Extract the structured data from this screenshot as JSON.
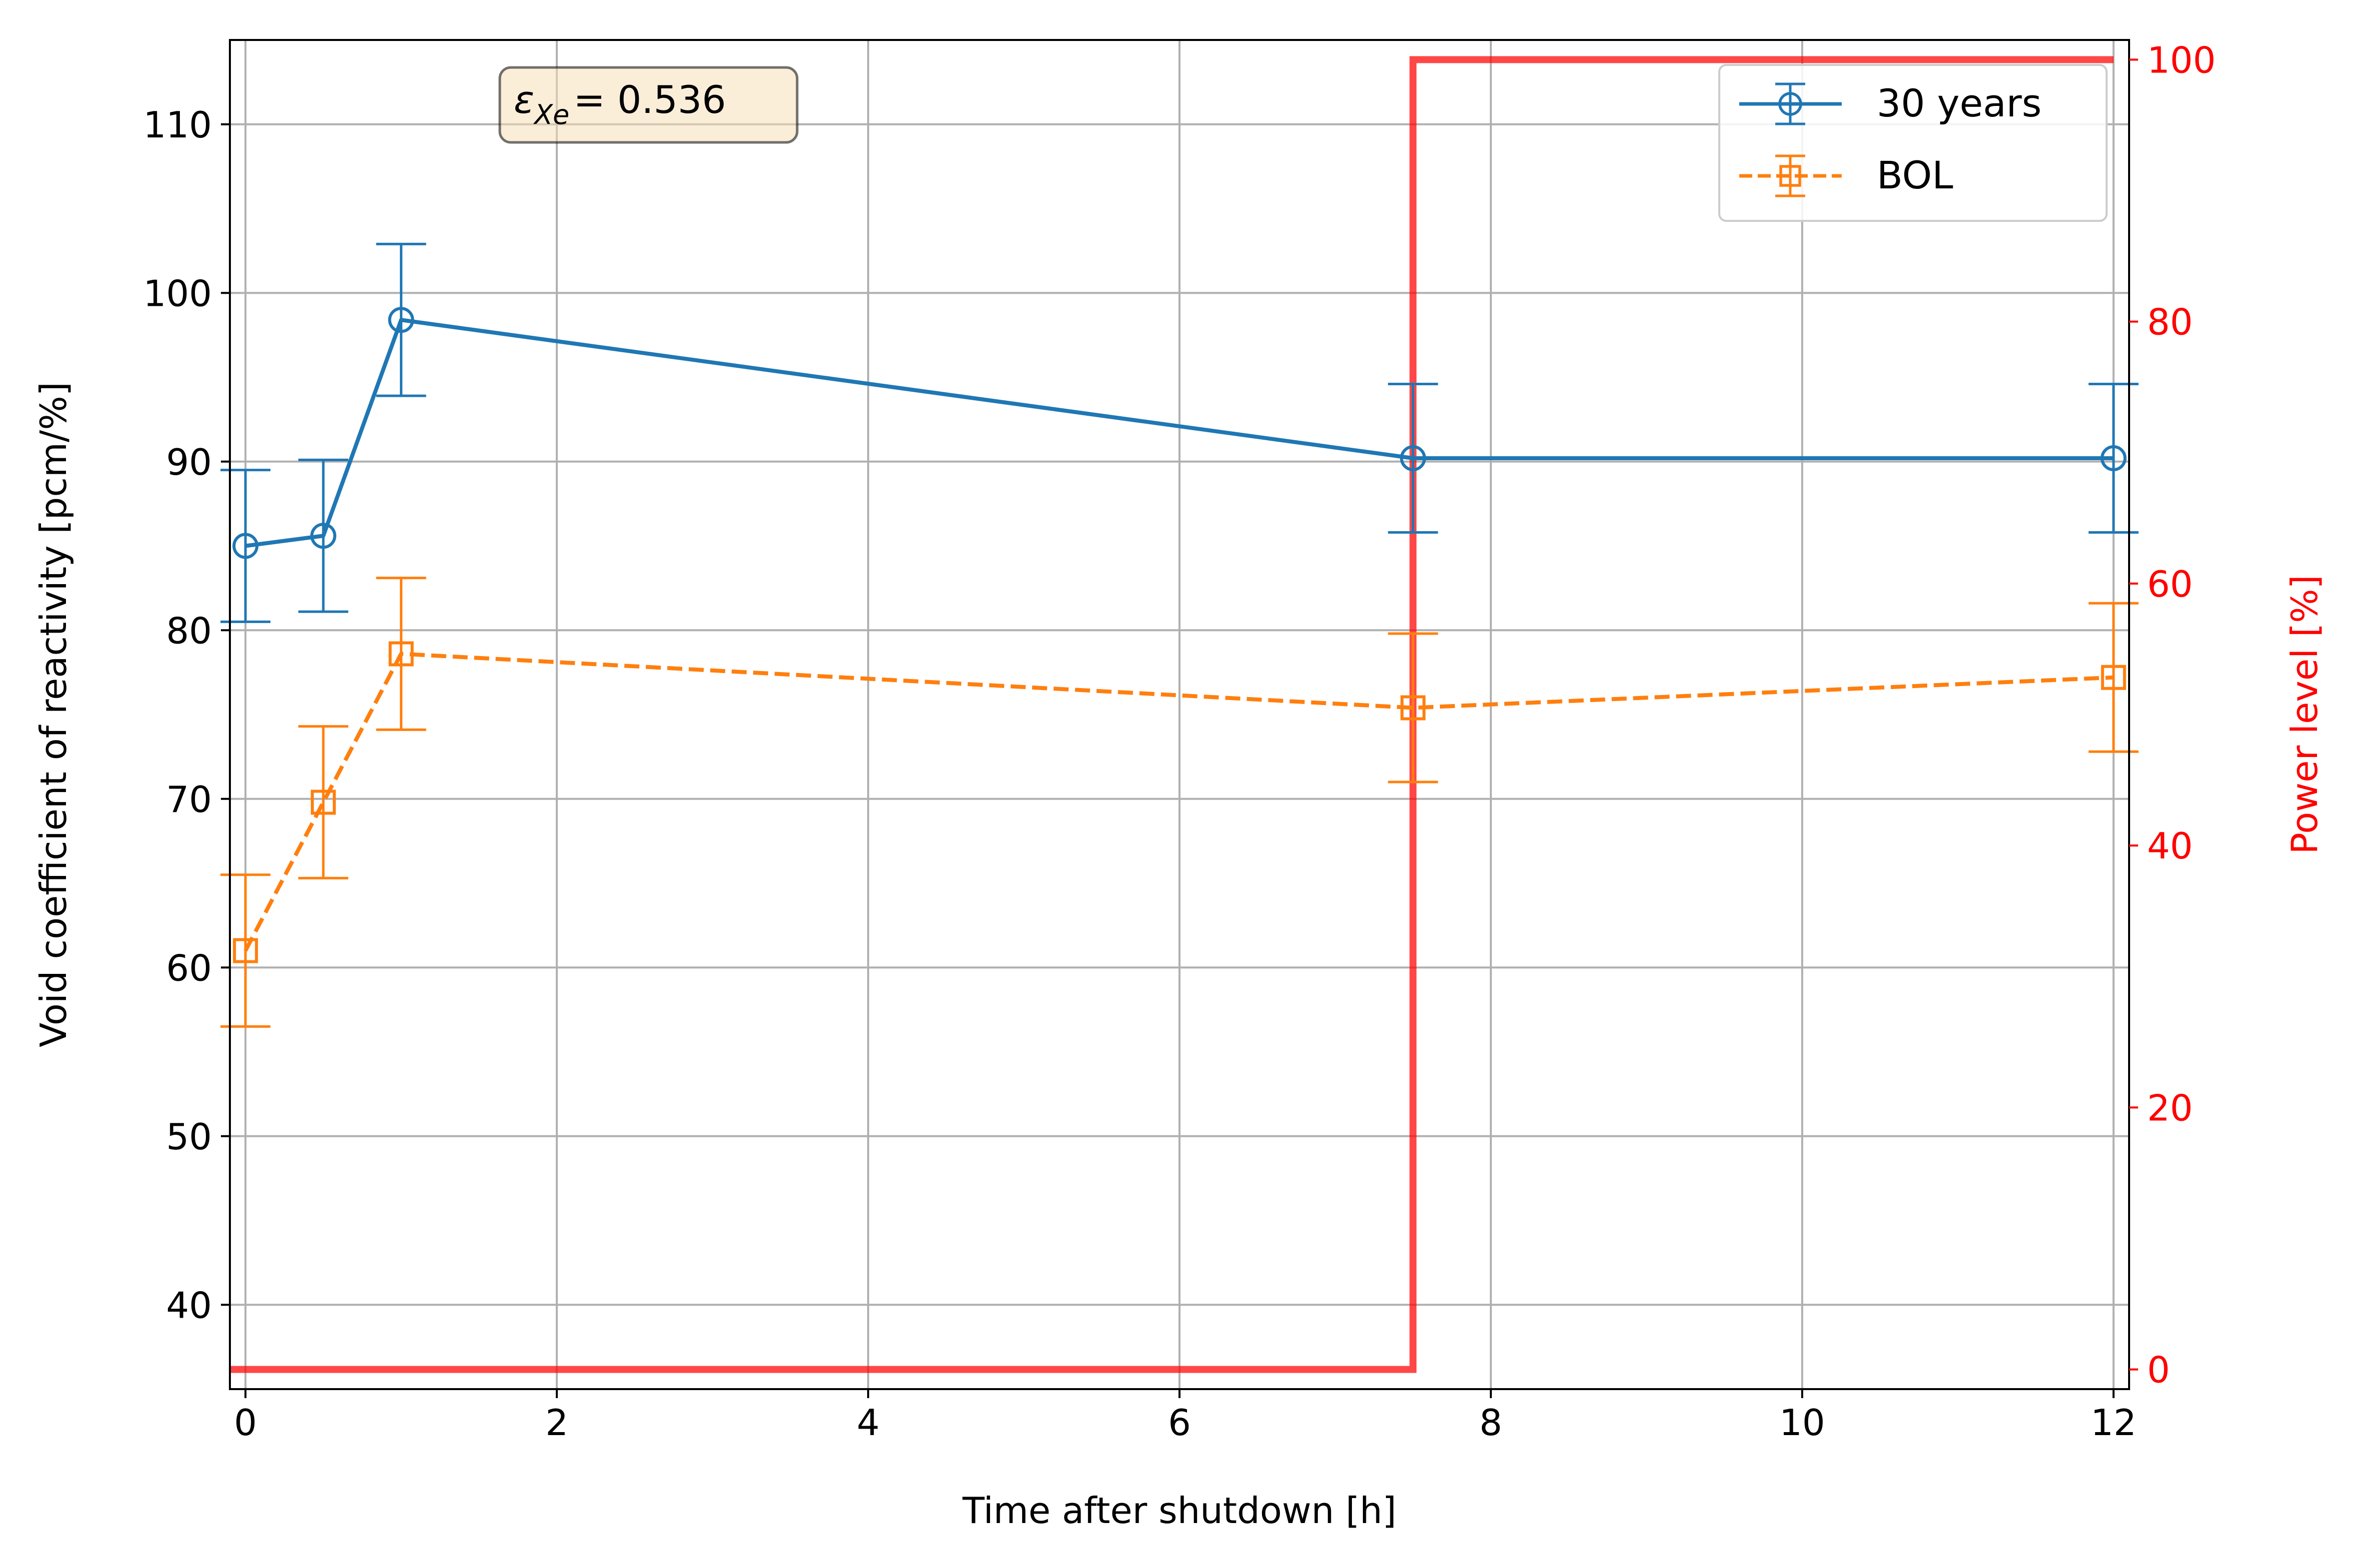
{
  "chart_data": {
    "type": "line",
    "xlabel": "Time after shutdown [h]",
    "ylabel": "Void coefficient of reactivity [pcm/%]",
    "y2label": "Power level [%]",
    "xlim": [
      -0.1,
      12.1
    ],
    "ylim": [
      35,
      115
    ],
    "y2lim": [
      -1.5,
      101.5
    ],
    "xticks": [
      0,
      2,
      4,
      6,
      8,
      10,
      12
    ],
    "yticks": [
      40,
      50,
      60,
      70,
      80,
      90,
      100,
      110
    ],
    "y2ticks": [
      0,
      20,
      40,
      60,
      80,
      100
    ],
    "grid": true,
    "legend_position": "top-right",
    "annotation": {
      "symbol": "ε",
      "subscript": "Xe",
      "text": "= 0.536"
    },
    "series": [
      {
        "name": "30 years",
        "color": "#1f77b4",
        "marker": "circle",
        "linestyle": "solid",
        "axis": "left",
        "x": [
          0,
          0.5,
          1,
          7.5,
          12
        ],
        "y": [
          85.0,
          85.6,
          98.4,
          90.2,
          90.2
        ],
        "err": [
          4.5,
          4.5,
          4.5,
          4.4,
          4.4
        ]
      },
      {
        "name": "BOL",
        "color": "#ff7f0e",
        "marker": "square",
        "linestyle": "dashed",
        "axis": "left",
        "x": [
          0,
          0.5,
          1,
          7.5,
          12
        ],
        "y": [
          61.0,
          69.8,
          78.6,
          75.4,
          77.2
        ],
        "err": [
          4.5,
          4.5,
          4.5,
          4.4,
          4.4
        ]
      },
      {
        "color": "#ff0000",
        "linestyle": "step",
        "axis": "right",
        "x": [
          -0.1,
          7.5,
          7.5,
          12.0
        ],
        "y": [
          0,
          0,
          100,
          100
        ]
      }
    ]
  }
}
